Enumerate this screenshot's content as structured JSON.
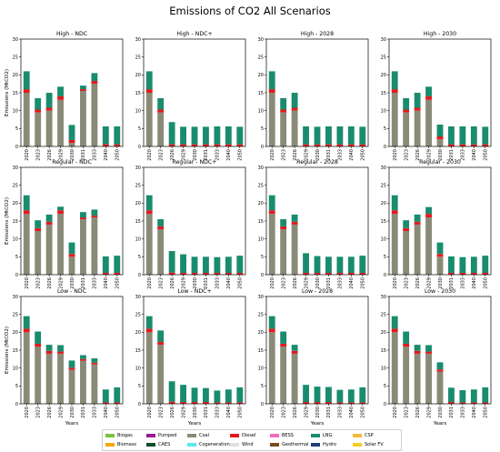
{
  "figure": {
    "title": "Emissions of CO2 All Scenarios"
  },
  "chart_data": [
    {
      "type": "bar",
      "title": "High - NDC",
      "xlabel": "",
      "ylabel": "Emissions (MtCO2)",
      "ylim": [
        0,
        30
      ],
      "categories": [
        "2020",
        "2023",
        "2026",
        "2029",
        "2030",
        "2031",
        "2033",
        "2040",
        "2050"
      ],
      "series": [
        {
          "name": "Coal",
          "values": [
            15,
            9.5,
            10,
            13,
            1,
            15.5,
            17.5,
            0,
            0
          ]
        },
        {
          "name": "Diesel",
          "values": [
            1,
            0.8,
            0.8,
            1,
            0.8,
            0.5,
            0.8,
            0.6,
            0.6
          ]
        },
        {
          "name": "LNG",
          "values": [
            5,
            3.2,
            4.2,
            2.7,
            4.2,
            1,
            2.2,
            5,
            5
          ]
        }
      ]
    },
    {
      "type": "bar",
      "title": "High - NDC+",
      "xlabel": "",
      "ylabel": "",
      "ylim": [
        0,
        30
      ],
      "categories": [
        "2020",
        "2023",
        "2026",
        "2029",
        "2030",
        "2031",
        "2033",
        "2040",
        "2050"
      ],
      "series": [
        {
          "name": "Coal",
          "values": [
            15,
            9.5,
            0,
            0,
            0,
            0,
            0,
            0,
            0
          ]
        },
        {
          "name": "Diesel",
          "values": [
            1,
            0.8,
            0.6,
            0.6,
            0.6,
            0.6,
            0.6,
            0.6,
            0.6
          ]
        },
        {
          "name": "LNG",
          "values": [
            5,
            3.2,
            6.2,
            4.9,
            4.9,
            4.9,
            5,
            5,
            4.9
          ]
        }
      ]
    },
    {
      "type": "bar",
      "title": "High - 2028",
      "xlabel": "",
      "ylabel": "",
      "ylim": [
        0,
        30
      ],
      "categories": [
        "2020",
        "2023",
        "2026",
        "2029",
        "2030",
        "2031",
        "2033",
        "2040",
        "2050"
      ],
      "series": [
        {
          "name": "Coal",
          "values": [
            15,
            9.5,
            10,
            0,
            0,
            0,
            0,
            0,
            0
          ]
        },
        {
          "name": "Diesel",
          "values": [
            1,
            0.8,
            0.8,
            0.6,
            0.6,
            0.6,
            0.6,
            0.6,
            0.6
          ]
        },
        {
          "name": "LNG",
          "values": [
            5,
            3.2,
            4.2,
            5,
            4.9,
            5,
            5,
            5,
            4.9
          ]
        }
      ]
    },
    {
      "type": "bar",
      "title": "High - 2030",
      "xlabel": "",
      "ylabel": "",
      "ylim": [
        0,
        30
      ],
      "categories": [
        "2020",
        "2023",
        "2026",
        "2029",
        "2030",
        "2031",
        "2033",
        "2040",
        "2050"
      ],
      "series": [
        {
          "name": "Coal",
          "values": [
            15,
            9.5,
            10,
            13,
            2,
            0,
            0,
            0,
            0
          ]
        },
        {
          "name": "Diesel",
          "values": [
            1,
            0.8,
            0.8,
            1,
            0.8,
            0.6,
            0.6,
            0.6,
            0.6
          ]
        },
        {
          "name": "LNG",
          "values": [
            5,
            3.2,
            4.2,
            2.7,
            3.3,
            5,
            5,
            5,
            4.9
          ]
        }
      ]
    },
    {
      "type": "bar",
      "title": "Regular - NDC",
      "xlabel": "",
      "ylabel": "Emissions (MtCO2)",
      "ylim": [
        0,
        30
      ],
      "categories": [
        "2020",
        "2023",
        "2026",
        "2029",
        "2030",
        "2031",
        "2033",
        "2040",
        "2050"
      ],
      "series": [
        {
          "name": "Coal",
          "values": [
            17,
            12.2,
            14,
            17,
            5,
            15.5,
            16,
            0,
            0
          ]
        },
        {
          "name": "Diesel",
          "values": [
            1,
            0.8,
            0.8,
            1,
            0.8,
            0.5,
            0.5,
            0.5,
            0.5
          ]
        },
        {
          "name": "LNG",
          "values": [
            4.2,
            2.2,
            2,
            1,
            3.2,
            1.5,
            1.7,
            4.6,
            4.8
          ]
        }
      ]
    },
    {
      "type": "bar",
      "title": "Regular - NDC+",
      "xlabel": "",
      "ylabel": "",
      "ylim": [
        0,
        30
      ],
      "categories": [
        "2020",
        "2023",
        "2026",
        "2029",
        "2030",
        "2031",
        "2033",
        "2040",
        "2050"
      ],
      "series": [
        {
          "name": "Coal",
          "values": [
            17,
            12.7,
            0,
            0,
            0,
            0,
            0,
            0,
            0
          ]
        },
        {
          "name": "Diesel",
          "values": [
            1,
            0.8,
            0.6,
            0.5,
            0.5,
            0.5,
            0.5,
            0.5,
            0.5
          ]
        },
        {
          "name": "LNG",
          "values": [
            4.2,
            2,
            6,
            5.2,
            4.5,
            4.5,
            4.4,
            4.5,
            4.8
          ]
        }
      ]
    },
    {
      "type": "bar",
      "title": "Regular - 2028",
      "xlabel": "",
      "ylabel": "",
      "ylim": [
        0,
        30
      ],
      "categories": [
        "2020",
        "2023",
        "2026",
        "2029",
        "2030",
        "2031",
        "2033",
        "2040",
        "2050"
      ],
      "series": [
        {
          "name": "Coal",
          "values": [
            17,
            12.7,
            14,
            0,
            0,
            0,
            0,
            0,
            0
          ]
        },
        {
          "name": "Diesel",
          "values": [
            1,
            0.8,
            0.8,
            0.5,
            0.5,
            0.5,
            0.5,
            0.5,
            0.5
          ]
        },
        {
          "name": "LNG",
          "values": [
            4.2,
            2,
            2,
            5.5,
            4.7,
            4.5,
            4.5,
            4.5,
            4.8
          ]
        }
      ]
    },
    {
      "type": "bar",
      "title": "Regular - 2030",
      "xlabel": "",
      "ylabel": "",
      "ylim": [
        0,
        30
      ],
      "categories": [
        "2020",
        "2023",
        "2026",
        "2029",
        "2030",
        "2031",
        "2033",
        "2040",
        "2050"
      ],
      "series": [
        {
          "name": "Coal",
          "values": [
            17,
            12.2,
            14,
            16,
            5,
            0,
            0,
            0,
            0
          ]
        },
        {
          "name": "Diesel",
          "values": [
            1,
            0.8,
            0.8,
            1,
            0.8,
            0.5,
            0.5,
            0.5,
            0.5
          ]
        },
        {
          "name": "LNG",
          "values": [
            4.2,
            2.2,
            2,
            1.9,
            3.2,
            4.6,
            4.4,
            4.5,
            4.8
          ]
        }
      ]
    },
    {
      "type": "bar",
      "title": "Low - NDC",
      "xlabel": "Years",
      "ylabel": "Emissions (MtCO2)",
      "ylim": [
        0,
        30
      ],
      "categories": [
        "2020",
        "2023",
        "2026",
        "2029",
        "2030",
        "2031",
        "2033",
        "2040",
        "2050"
      ],
      "series": [
        {
          "name": "Coal",
          "values": [
            20,
            16,
            14,
            14,
            9.5,
            12,
            11,
            0,
            0
          ]
        },
        {
          "name": "Diesel",
          "values": [
            1,
            0.8,
            0.8,
            0.6,
            0.6,
            0.5,
            0.5,
            0.4,
            0.4
          ]
        },
        {
          "name": "LNG",
          "values": [
            3.5,
            3.4,
            1.7,
            1.8,
            2,
            1.1,
            1.2,
            3.6,
            4.2
          ]
        }
      ]
    },
    {
      "type": "bar",
      "title": "Low - NDC+",
      "xlabel": "Years",
      "ylabel": "",
      "ylim": [
        0,
        30
      ],
      "categories": [
        "2020",
        "2023",
        "2026",
        "2029",
        "2030",
        "2031",
        "2033",
        "2040",
        "2050"
      ],
      "series": [
        {
          "name": "Coal",
          "values": [
            20,
            16.5,
            0,
            0,
            0,
            0,
            0,
            0,
            0
          ]
        },
        {
          "name": "Diesel",
          "values": [
            1,
            0.8,
            0.6,
            0.5,
            0.5,
            0.5,
            0.4,
            0.4,
            0.4
          ]
        },
        {
          "name": "LNG",
          "values": [
            3.5,
            3.2,
            5.7,
            4.8,
            4,
            3.9,
            3.3,
            3.6,
            4.2
          ]
        }
      ]
    },
    {
      "type": "bar",
      "title": "Low - 2028",
      "xlabel": "Years",
      "ylabel": "",
      "ylim": [
        0,
        30
      ],
      "categories": [
        "2020",
        "2023",
        "2026",
        "2029",
        "2030",
        "2031",
        "2033",
        "2040",
        "2050"
      ],
      "series": [
        {
          "name": "Coal",
          "values": [
            20,
            16,
            14,
            0,
            0,
            0,
            0,
            0,
            0
          ]
        },
        {
          "name": "Diesel",
          "values": [
            1,
            0.8,
            0.8,
            0.5,
            0.5,
            0.5,
            0.4,
            0.4,
            0.4
          ]
        },
        {
          "name": "LNG",
          "values": [
            3.5,
            3.4,
            1.7,
            4.8,
            4.3,
            4.2,
            3.5,
            3.6,
            4.2
          ]
        }
      ]
    },
    {
      "type": "bar",
      "title": "Low - 2030",
      "xlabel": "Years",
      "ylabel": "",
      "ylim": [
        0,
        30
      ],
      "categories": [
        "2020",
        "2023",
        "2026",
        "2029",
        "2030",
        "2031",
        "2033",
        "2040",
        "2050"
      ],
      "series": [
        {
          "name": "Coal",
          "values": [
            20,
            16,
            14,
            14,
            9,
            0,
            0,
            0,
            0
          ]
        },
        {
          "name": "Diesel",
          "values": [
            1,
            0.8,
            0.8,
            0.6,
            0.6,
            0.5,
            0.4,
            0.4,
            0.4
          ]
        },
        {
          "name": "LNG",
          "values": [
            3.5,
            3.4,
            1.7,
            1.8,
            2,
            4,
            3.4,
            3.6,
            4.2
          ]
        }
      ]
    }
  ],
  "ytick_labels": [
    "0",
    "5",
    "10",
    "15",
    "20",
    "25",
    "30"
  ],
  "legend": {
    "columns": [
      [
        {
          "name": "Biogas",
          "color": "#7ac143"
        },
        {
          "name": "Biomass",
          "color": "#f2a900"
        }
      ],
      [
        {
          "name": "Pumped",
          "color": "#9b1b9b"
        },
        {
          "name": "CAES",
          "color": "#0e4d2a"
        }
      ],
      [
        {
          "name": "Coal",
          "color": "#8a8a78"
        },
        {
          "name": "Cogeneration",
          "color": "#5ce6f2"
        }
      ],
      [
        {
          "name": "Diesel",
          "color": "#e31a1c"
        },
        {
          "name": "Wind",
          "color": "#e0e0e0"
        }
      ],
      [
        {
          "name": "BESS",
          "color": "#f06ac0"
        },
        {
          "name": "Geothermal",
          "color": "#7a4b1e"
        }
      ],
      [
        {
          "name": "LNG",
          "color": "#198c6e"
        },
        {
          "name": "Hydro",
          "color": "#1f3f7a"
        }
      ],
      [
        {
          "name": "CSP",
          "color": "#f2b93b"
        },
        {
          "name": "Solar FV",
          "color": "#f0d020"
        }
      ]
    ]
  },
  "colors": {
    "Coal": "#8a8a78",
    "Diesel": "#e31a1c",
    "LNG": "#198c6e"
  }
}
